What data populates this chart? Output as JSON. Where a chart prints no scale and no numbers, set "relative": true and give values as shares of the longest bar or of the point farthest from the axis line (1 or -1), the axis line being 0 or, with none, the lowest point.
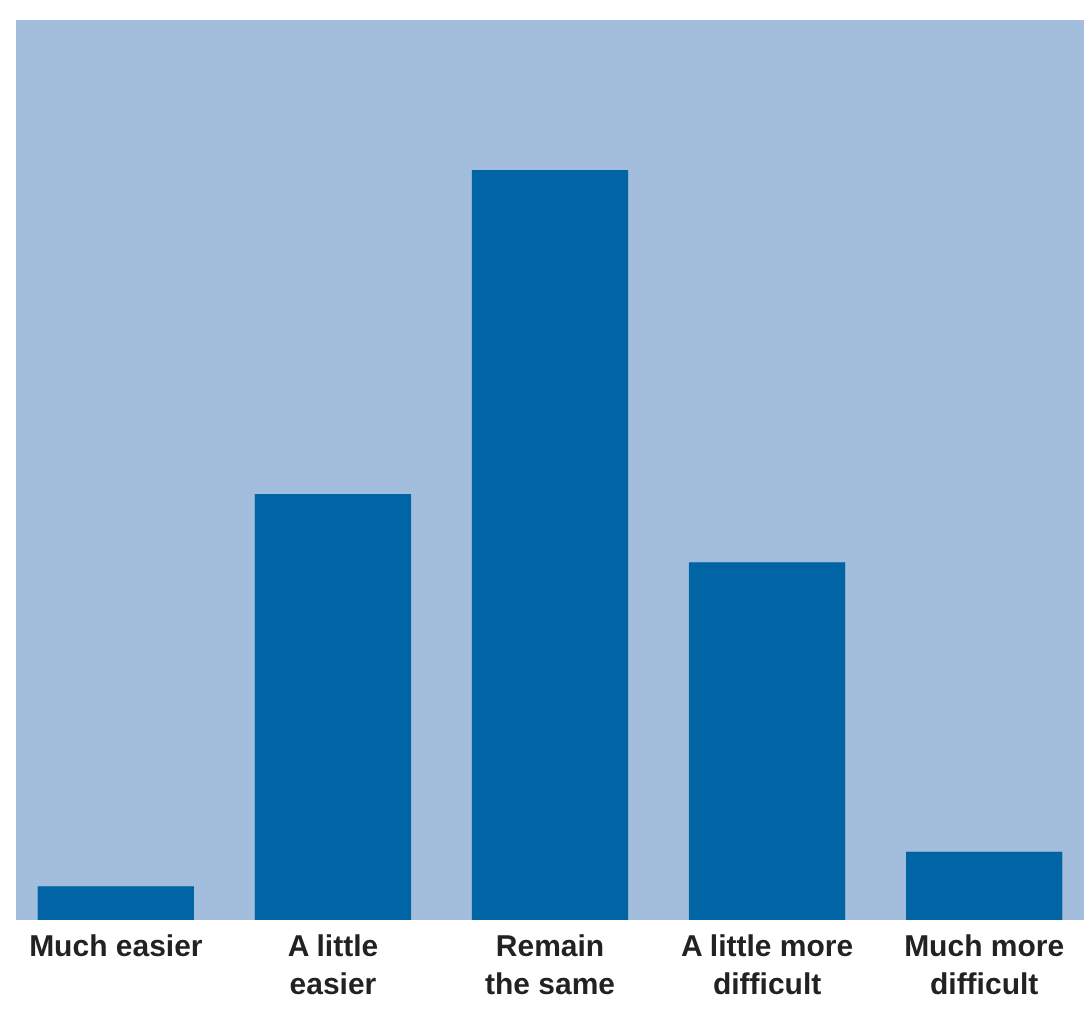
{
  "chart_data": {
    "type": "bar",
    "relative": true,
    "categories": [
      "Much easier",
      "A little easier",
      "Remain the same",
      "A little more difficult",
      "Much more difficult"
    ],
    "values": [
      0.045,
      0.568,
      1,
      0.477,
      0.091
    ],
    "color": "#0064a5"
  }
}
